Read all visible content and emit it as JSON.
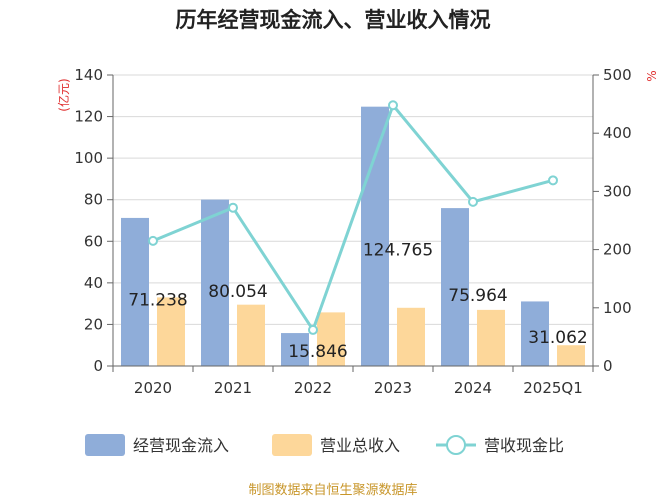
{
  "chart_data": {
    "type": "bar",
    "title": "历年经营现金流入、营业收入情况",
    "categories": [
      "2020",
      "2021",
      "2022",
      "2023",
      "2024",
      "2025Q1"
    ],
    "y_left": {
      "unit_label": "(亿元)",
      "ylim": [
        0,
        140
      ],
      "ticks": [
        "0",
        "20",
        "40",
        "60",
        "80",
        "100",
        "120",
        "140"
      ]
    },
    "y_right": {
      "unit_label": "%",
      "ylim": [
        0,
        500
      ],
      "ticks": [
        "0",
        "100",
        "200",
        "300",
        "400",
        "500"
      ]
    },
    "series": [
      {
        "name": "经营现金流入",
        "type": "bar",
        "axis": "left",
        "color": "#8fadd9",
        "values": [
          71.238,
          80.054,
          15.846,
          124.765,
          75.964,
          31.062
        ],
        "labels": [
          "71.238",
          "80.054",
          "15.846",
          "124.765",
          "75.964",
          "31.062"
        ]
      },
      {
        "name": "营业总收入",
        "type": "bar",
        "axis": "left",
        "color": "#fdd79a",
        "values": [
          33,
          29.5,
          25.8,
          28,
          27,
          10
        ]
      },
      {
        "name": "营收现金比",
        "type": "line",
        "axis": "right",
        "color": "#7fd3d3",
        "values": [
          215,
          272,
          62,
          448,
          282,
          319
        ]
      }
    ],
    "legend_position": "bottom",
    "grid": true
  },
  "source": {
    "text": "制图数据来自恒生聚源数据库",
    "color": "#c8962a"
  }
}
